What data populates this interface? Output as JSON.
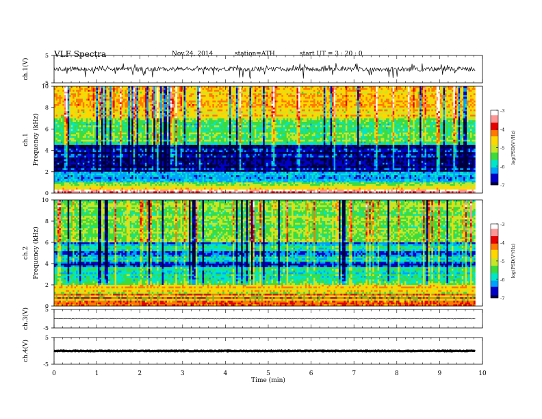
{
  "header": {
    "title": "VLF  Spectra",
    "date": "Nov.24, 2014",
    "station": "station=ATH",
    "start": "start  UT  =   3  : 20 : 0"
  },
  "chart_data": [
    {
      "type": "line",
      "panel": "ch1-waveform",
      "ylabel": "ch.1(V)",
      "ylim": [
        -5,
        5
      ],
      "yticks": [
        "5",
        "-5"
      ],
      "x_range_min": [
        0,
        10
      ],
      "data_extent_min": [
        0,
        9.83
      ],
      "series": [
        {
          "values_summary": "noisy waveform around 0 V, mostly within +/-1.5 V with spikes to about -3 V"
        }
      ]
    },
    {
      "type": "heatmap",
      "panel": "ch1-spectrogram",
      "ylabel_top": "ch.1",
      "ylabel": "Frequency  (kHz)",
      "ylim": [
        0,
        10
      ],
      "yticks": [
        "0",
        "2",
        "4",
        "6",
        "8",
        "10"
      ],
      "colorbar": {
        "label": "log(PSD(V²/Hz)",
        "range": [
          -7,
          -3
        ],
        "ticks": [
          "-3",
          "-4",
          "-5",
          "-6",
          "-7"
        ]
      },
      "bands_khz": [
        {
          "from": 0,
          "to": 1.0,
          "level": "-3.5 to -4 (red/yellow bands)"
        },
        {
          "from": 1.0,
          "to": 2.0,
          "level": "-6 (cyan/blue)"
        },
        {
          "from": 2.0,
          "to": 4.5,
          "level": "-6.5 to -7 (blue/dark)"
        },
        {
          "from": 4.5,
          "to": 7.0,
          "level": "-5 to -5.5 (green)"
        },
        {
          "from": 7.0,
          "to": 10.0,
          "level": "-4 to -5 (yellow/red, impulsive)"
        }
      ]
    },
    {
      "type": "heatmap",
      "panel": "ch2-spectrogram",
      "ylabel_top": "ch.2",
      "ylabel": "Frequency  (kHz)",
      "ylim": [
        0,
        10
      ],
      "yticks": [
        "0",
        "2",
        "4",
        "6",
        "8",
        "10"
      ],
      "colorbar": {
        "label": "log(PSD(V²/Hz)",
        "range": [
          -7,
          -3
        ],
        "ticks": [
          "-3",
          "-4",
          "-5",
          "-6",
          "-7"
        ]
      },
      "bands_khz": [
        {
          "from": 0,
          "to": 2.0,
          "level": "-4 to -5 (yellow/green horizontal bands)"
        },
        {
          "from": 2.0,
          "to": 3.0,
          "level": "-5.5 (green/cyan)"
        },
        {
          "from": 3.0,
          "to": 6.0,
          "level": "-6 to -6.5 (blue/cyan)"
        },
        {
          "from": 6.0,
          "to": 10.0,
          "level": "-5 to -5.5 (green with yellow bursts)"
        }
      ]
    },
    {
      "type": "line",
      "panel": "ch3-waveform",
      "ylabel": "ch.3(V)",
      "ylim": [
        -5,
        5
      ],
      "yticks": [
        "5",
        "-5"
      ],
      "series": [
        {
          "values_summary": "nearly flat trace near 0 V"
        }
      ]
    },
    {
      "type": "line",
      "panel": "ch4-waveform",
      "ylabel": "ch.4(V)",
      "ylim": [
        -5,
        5
      ],
      "yticks": [
        "5",
        "-5"
      ],
      "xlabel": "Time  (min)",
      "xlim": [
        0,
        10
      ],
      "xticks": [
        "0",
        "1",
        "2",
        "3",
        "4",
        "5",
        "6",
        "7",
        "8",
        "9",
        "10"
      ],
      "series": [
        {
          "values_summary": "thick flat trace near 0 V"
        }
      ]
    }
  ],
  "colors": {
    "colormap": [
      "#00003c",
      "#0000c8",
      "#00a0ff",
      "#00e6c8",
      "#3cdc3c",
      "#c8e628",
      "#ffd700",
      "#ff7800",
      "#e60000",
      "#ff9696",
      "#ffffff"
    ],
    "trace": "#000000"
  }
}
